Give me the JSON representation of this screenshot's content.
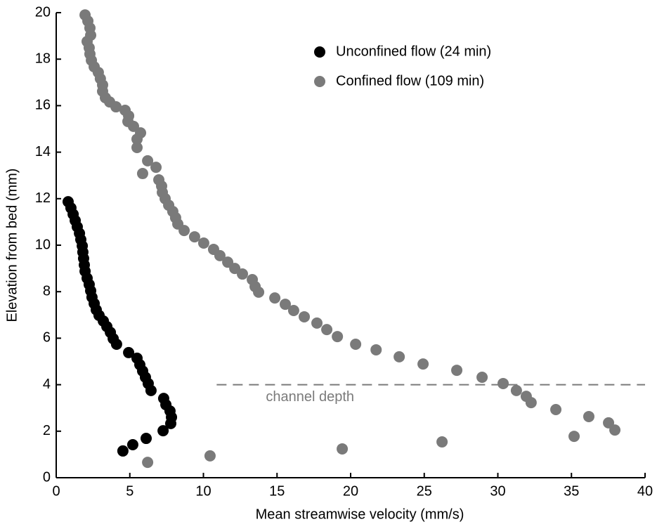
{
  "chart_data": {
    "type": "scatter",
    "xlabel": "Mean streamwise velocity (mm/s)",
    "ylabel": "Elevation from bed (mm)",
    "xlim": [
      0,
      40
    ],
    "xticks": [
      0,
      5,
      10,
      15,
      20,
      25,
      30,
      35,
      40
    ],
    "ylim": [
      0,
      20
    ],
    "yticks": [
      0,
      2,
      4,
      6,
      8,
      10,
      12,
      14,
      16,
      18,
      20
    ],
    "legend": "upper right",
    "series": [
      {
        "name": "Unconfined flow (24 min)",
        "color": "#000000",
        "x": [
          0.81,
          1.0,
          1.15,
          1.29,
          1.43,
          1.58,
          1.67,
          1.77,
          1.81,
          1.86,
          1.91,
          1.96,
          2.1,
          2.24,
          2.34,
          2.43,
          2.58,
          2.72,
          2.91,
          3.2,
          3.44,
          3.68,
          3.87,
          4.1,
          4.92,
          5.49,
          5.68,
          5.87,
          6.06,
          6.25,
          6.44,
          7.3,
          7.45,
          7.73,
          7.83,
          7.78,
          7.26,
          6.11,
          5.2,
          4.53
        ],
        "values": [
          11.87,
          11.6,
          11.33,
          11.06,
          10.79,
          10.51,
          10.24,
          9.97,
          9.7,
          9.43,
          9.15,
          8.88,
          8.58,
          8.31,
          8.04,
          7.76,
          7.49,
          7.22,
          6.98,
          6.74,
          6.5,
          6.25,
          5.98,
          5.74,
          5.38,
          5.14,
          4.86,
          4.59,
          4.32,
          4.05,
          3.75,
          3.41,
          3.14,
          2.87,
          2.6,
          2.33,
          2.02,
          1.69,
          1.42,
          1.15
        ]
      },
      {
        "name": "Confined flow (109 min)",
        "color": "#7a7a7a",
        "x": [
          1.96,
          2.15,
          2.29,
          2.34,
          2.1,
          2.24,
          2.29,
          2.39,
          2.58,
          2.86,
          3.0,
          3.15,
          3.15,
          3.34,
          3.63,
          4.06,
          4.68,
          4.92,
          4.87,
          5.25,
          5.73,
          5.49,
          5.49,
          6.21,
          6.78,
          5.87,
          6.97,
          7.16,
          7.21,
          7.4,
          7.64,
          7.92,
          8.11,
          8.26,
          8.69,
          9.4,
          10.02,
          10.69,
          11.12,
          11.65,
          12.13,
          12.65,
          13.32,
          13.51,
          13.75,
          14.85,
          15.56,
          16.13,
          16.85,
          17.71,
          18.38,
          19.1,
          20.34,
          21.73,
          23.3,
          24.92,
          27.21,
          28.93,
          30.36,
          31.26,
          31.93,
          32.26,
          33.94,
          36.18,
          37.52,
          37.95,
          35.18,
          26.21,
          19.43,
          10.45,
          6.21
        ],
        "values": [
          19.9,
          19.64,
          19.34,
          19.03,
          18.76,
          18.49,
          18.22,
          17.95,
          17.67,
          17.43,
          17.16,
          16.89,
          16.62,
          16.34,
          16.16,
          15.95,
          15.8,
          15.56,
          15.32,
          15.11,
          14.83,
          14.56,
          14.2,
          13.63,
          13.35,
          13.08,
          12.81,
          12.54,
          12.27,
          12.0,
          11.72,
          11.45,
          11.18,
          10.91,
          10.63,
          10.36,
          10.09,
          9.82,
          9.55,
          9.27,
          9.0,
          8.76,
          8.52,
          8.22,
          7.98,
          7.73,
          7.46,
          7.19,
          6.92,
          6.65,
          6.37,
          6.07,
          5.74,
          5.5,
          5.2,
          4.89,
          4.62,
          4.32,
          4.05,
          3.75,
          3.5,
          3.23,
          2.93,
          2.63,
          2.36,
          2.05,
          1.78,
          1.54,
          1.24,
          0.94,
          0.66
        ]
      }
    ],
    "reference_line": {
      "y": 4,
      "xstart": 10.9,
      "xend": 40,
      "label": "channel depth",
      "color": "#7a7a7a"
    }
  }
}
